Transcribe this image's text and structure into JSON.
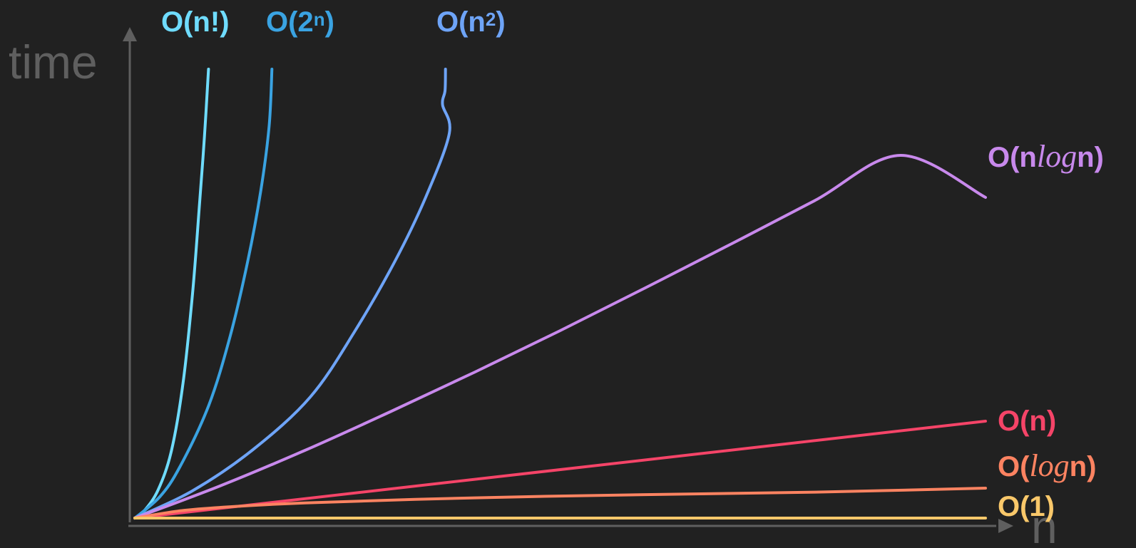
{
  "chart_data": {
    "type": "line",
    "title": "",
    "xlabel": "n",
    "ylabel": "time",
    "grid": false,
    "legend": "inline labels at curve ends",
    "series": [
      {
        "name": "O(n!)",
        "label_parts": [
          {
            "text": "O(n!)",
            "style": "plain"
          }
        ],
        "color": "#6fdcff",
        "points": [
          [
            0,
            0
          ],
          [
            0.0115,
            0.017
          ],
          [
            0.0275,
            0.063
          ],
          [
            0.0431,
            0.15
          ],
          [
            0.0567,
            0.3
          ],
          [
            0.0679,
            0.5
          ],
          [
            0.0761,
            0.7
          ],
          [
            0.0819,
            0.85
          ],
          [
            0.0867,
            1.0
          ]
        ]
      },
      {
        "name": "O(2ⁿ)",
        "label_parts": [
          {
            "text": "O(2",
            "style": "plain"
          },
          {
            "text": "n",
            "style": "sup"
          },
          {
            "text": ")",
            "style": "plain"
          }
        ],
        "color": "#3aa3e2",
        "points": [
          [
            0,
            0
          ],
          [
            0.0295,
            0.0476
          ],
          [
            0.0531,
            0.1143
          ],
          [
            0.0869,
            0.2508
          ],
          [
            0.1121,
            0.4048
          ],
          [
            0.1327,
            0.5714
          ],
          [
            0.1482,
            0.7302
          ],
          [
            0.1579,
            0.873
          ],
          [
            0.1612,
            1.0
          ]
        ]
      },
      {
        "name": "O(n²)",
        "label_parts": [
          {
            "text": "O(n",
            "style": "plain"
          },
          {
            "text": "2",
            "style": "sup"
          },
          {
            "text": ")",
            "style": "plain"
          }
        ],
        "color": "#6ea4f7",
        "points": [
          [
            0,
            0
          ],
          [
            0.0675,
            0.0603
          ],
          [
            0.1389,
            0.1524
          ],
          [
            0.2064,
            0.2698
          ],
          [
            0.2575,
            0.4127
          ],
          [
            0.3056,
            0.5714
          ],
          [
            0.3419,
            0.7143
          ],
          [
            0.3697,
            0.8571
          ],
          [
            0.3618,
            0.9206
          ],
          [
            0.3647,
            0.9524
          ],
          [
            0.3652,
            1.0
          ]
        ]
      },
      {
        "name": "O(nlogn)",
        "label_parts": [
          {
            "text": "O(n",
            "style": "plain"
          },
          {
            "text": "log",
            "style": "log"
          },
          {
            "text": "n)",
            "style": "plain"
          }
        ],
        "color": "#c889ec",
        "points": [
          [
            0,
            0
          ],
          [
            0.1,
            0.0714
          ],
          [
            0.2,
            0.1508
          ],
          [
            0.3,
            0.2365
          ],
          [
            0.4,
            0.3254
          ],
          [
            0.5,
            0.4175
          ],
          [
            0.6,
            0.5127
          ],
          [
            0.7,
            0.6095
          ],
          [
            0.8,
            0.7079
          ],
          [
            0.9,
            0.8079
          ],
          [
            1.0,
            0.7143
          ]
        ]
      },
      {
        "name": "O(n)",
        "label_parts": [
          {
            "text": "O(n)",
            "style": "plain"
          }
        ],
        "color": "#f54468",
        "points": [
          [
            0,
            0
          ],
          [
            1.0,
            0.2159
          ]
        ]
      },
      {
        "name": "O(logn)",
        "label_parts": [
          {
            "text": "O(",
            "style": "plain"
          },
          {
            "text": "log",
            "style": "log"
          },
          {
            "text": "n)",
            "style": "plain"
          }
        ],
        "color": "#fd8361",
        "points": [
          [
            0,
            0
          ],
          [
            0.05,
            0.0154
          ],
          [
            0.1,
            0.0237
          ],
          [
            0.2,
            0.0338
          ],
          [
            0.4,
            0.0451
          ],
          [
            0.6,
            0.0523
          ],
          [
            0.8,
            0.0577
          ],
          [
            1.0,
            0.0667
          ]
        ]
      },
      {
        "name": "O(1)",
        "label_parts": [
          {
            "text": "O(1)",
            "style": "plain"
          }
        ],
        "color": "#f9c86a",
        "points": [
          [
            0,
            0
          ],
          [
            1.0,
            0
          ]
        ]
      }
    ]
  }
}
